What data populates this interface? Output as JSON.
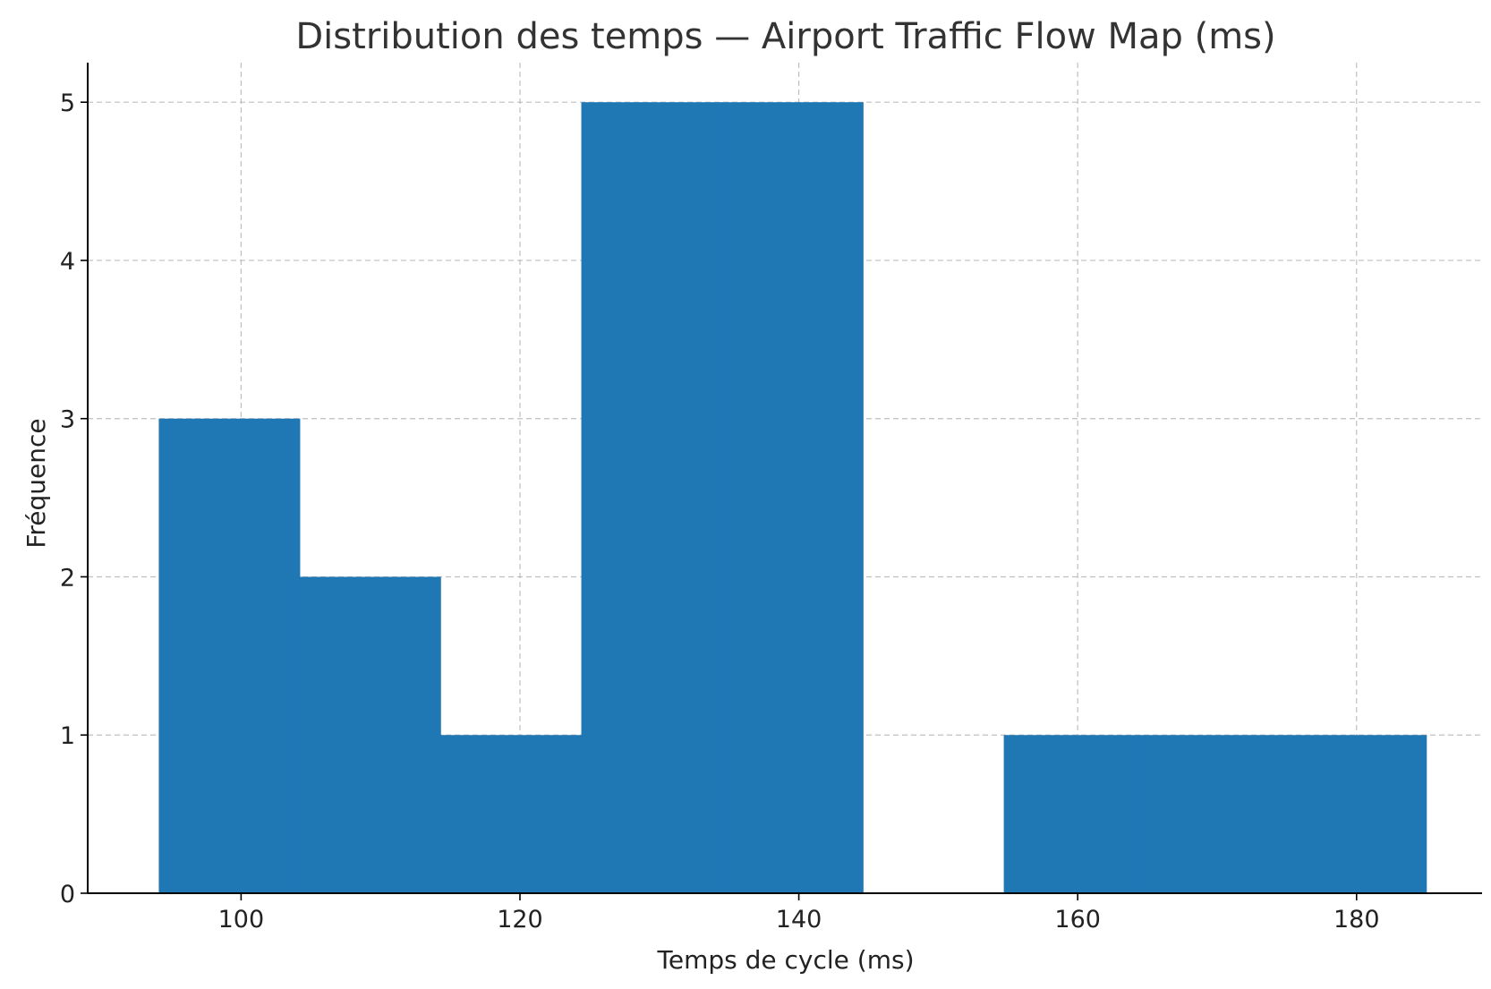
{
  "chart_data": {
    "type": "bar",
    "subtype": "histogram",
    "title": "Distribution des temps — Airport Traffic Flow Map (ms)",
    "xlabel": "Temps de cycle (ms)",
    "ylabel": "Fréquence",
    "xlim": [
      89,
      189
    ],
    "ylim": [
      0,
      5.25
    ],
    "xticks": [
      100,
      120,
      140,
      160,
      180
    ],
    "yticks": [
      0,
      1,
      2,
      3,
      4,
      5
    ],
    "grid": true,
    "bin_edges": [
      94.1,
      104.2,
      114.3,
      124.4,
      134.5,
      144.6,
      154.7,
      164.8,
      174.9,
      185.0
    ],
    "counts": [
      3,
      2,
      1,
      5,
      5,
      0,
      1,
      1,
      1
    ],
    "bar_color": "#1f77b4",
    "grid_color": "#b0b0b0",
    "axis_color": "#000000",
    "text_color": "#333333"
  }
}
